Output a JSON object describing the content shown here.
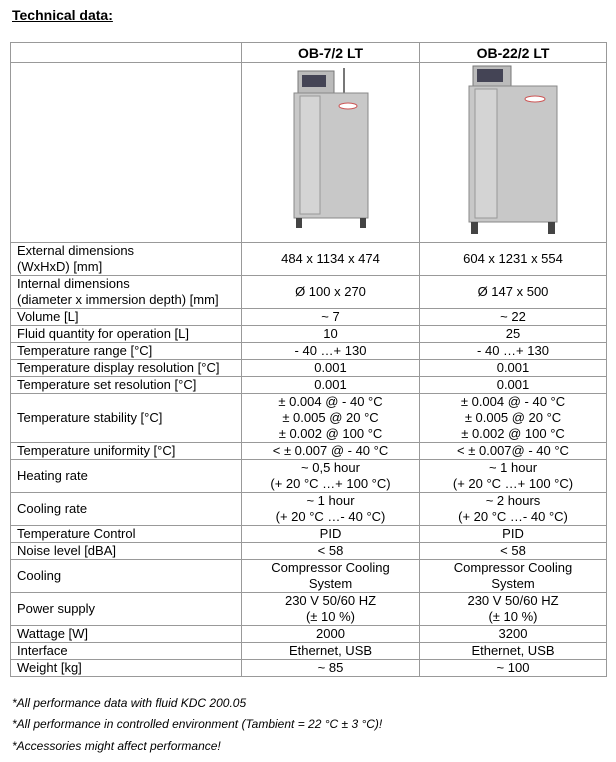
{
  "header": {
    "title": "Technical data:"
  },
  "table": {
    "columns": [
      "OB-7/2 LT",
      "OB-22/2 LT"
    ],
    "rows": [
      {
        "label": [
          "External dimensions",
          "(WxHxD) [mm]"
        ],
        "values": [
          [
            "484 x 1134 x 474"
          ],
          [
            "604 x 1231 x 554"
          ]
        ]
      },
      {
        "label": [
          "Internal dimensions",
          "(diameter x immersion depth) [mm]"
        ],
        "values": [
          [
            "Ø 100 x 270"
          ],
          [
            "Ø 147 x 500"
          ]
        ]
      },
      {
        "label": [
          "Volume [L]"
        ],
        "values": [
          [
            "~ 7"
          ],
          [
            "~ 22"
          ]
        ]
      },
      {
        "label": [
          "Fluid quantity for operation [L]"
        ],
        "values": [
          [
            "10"
          ],
          [
            "25"
          ]
        ]
      },
      {
        "label": [
          "Temperature range [°C]"
        ],
        "values": [
          [
            "- 40 …+ 130"
          ],
          [
            "- 40 …+ 130"
          ]
        ]
      },
      {
        "label": [
          "Temperature display resolution [°C]"
        ],
        "values": [
          [
            "0.001"
          ],
          [
            "0.001"
          ]
        ]
      },
      {
        "label": [
          "Temperature set resolution [°C]"
        ],
        "values": [
          [
            "0.001"
          ],
          [
            "0.001"
          ]
        ]
      },
      {
        "label": [
          "Temperature stability [°C]"
        ],
        "values": [
          [
            "± 0.004 @ - 40 °C",
            "± 0.005 @ 20 °C",
            "± 0.002 @ 100 °C"
          ],
          [
            "± 0.004 @ - 40 °C",
            "± 0.005 @ 20 °C",
            "± 0.002 @ 100 °C"
          ]
        ]
      },
      {
        "label": [
          "Temperature uniformity [°C]"
        ],
        "values": [
          [
            "< ± 0.007 @ - 40 °C"
          ],
          [
            "< ± 0.007@ - 40 °C"
          ]
        ]
      },
      {
        "label": [
          "Heating rate"
        ],
        "values": [
          [
            "~ 0,5 hour",
            "(+ 20 °C …+ 100 °C)"
          ],
          [
            "~ 1 hour",
            "(+ 20 °C …+ 100 °C)"
          ]
        ]
      },
      {
        "label": [
          "Cooling rate"
        ],
        "values": [
          [
            "~ 1 hour",
            "(+ 20 °C …- 40 °C)"
          ],
          [
            "~ 2 hours",
            "(+ 20 °C …- 40 °C)"
          ]
        ]
      },
      {
        "label": [
          "Temperature Control"
        ],
        "values": [
          [
            "PID"
          ],
          [
            "PID"
          ]
        ]
      },
      {
        "label": [
          "Noise level [dBA]"
        ],
        "values": [
          [
            "< 58"
          ],
          [
            "< 58"
          ]
        ]
      },
      {
        "label": [
          "Cooling"
        ],
        "values": [
          [
            "Compressor Cooling",
            "System"
          ],
          [
            "Compressor Cooling",
            "System"
          ]
        ]
      },
      {
        "label": [
          "Power supply"
        ],
        "values": [
          [
            "230 V 50/60 HZ",
            "(± 10 %)"
          ],
          [
            "230 V 50/60 HZ",
            "(± 10 %)"
          ]
        ]
      },
      {
        "label": [
          "Wattage [W]"
        ],
        "values": [
          [
            "2000"
          ],
          [
            "3200"
          ]
        ]
      },
      {
        "label": [
          "Interface"
        ],
        "values": [
          [
            "Ethernet, USB"
          ],
          [
            "Ethernet, USB"
          ]
        ]
      },
      {
        "label": [
          "Weight [kg]"
        ],
        "values": [
          [
            "~ 85"
          ],
          [
            "~ 100"
          ]
        ]
      }
    ]
  },
  "footnotes": [
    "*All performance data with fluid KDC 200.05",
    "*All performance in controlled environment (Tambient = 22 °C ± 3 °C)!",
    "*Accessories might affect performance!"
  ]
}
